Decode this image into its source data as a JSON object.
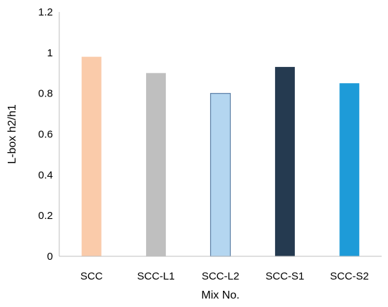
{
  "chart_data": {
    "type": "bar",
    "categories": [
      "SCC",
      "SCC-L1",
      "SCC-L2",
      "SCC-S1",
      "SCC-S2"
    ],
    "values": [
      0.98,
      0.9,
      0.8,
      0.93,
      0.85
    ],
    "bar_colors": [
      "#FACBAA",
      "#BFBFBF",
      "#B4D6F0",
      "#253A50",
      "#1E9BD8"
    ],
    "bar_outlines": [
      "none",
      "none",
      "#5B7FA6",
      "none",
      "none"
    ],
    "xlabel": "Mix No.",
    "ylabel": "L-box h2/h1",
    "ylim": [
      0,
      1.2
    ],
    "yticks": [
      0,
      0.2,
      0.4,
      0.6,
      0.8,
      1,
      1.2
    ],
    "ytick_labels": [
      "0",
      "0.2",
      "0.4",
      "0.6",
      "0.8",
      "1",
      "1.2"
    ],
    "grid": false,
    "legend": "none"
  }
}
